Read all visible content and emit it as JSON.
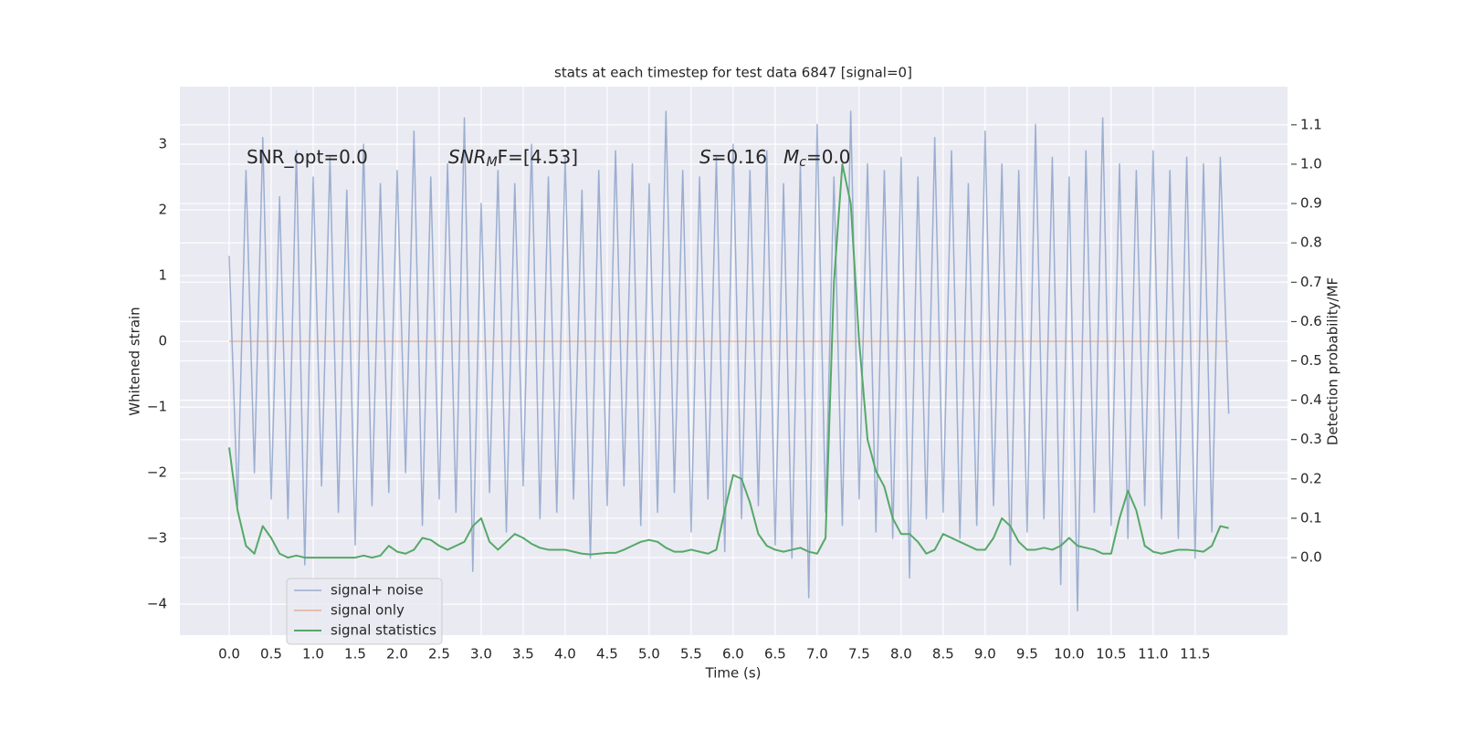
{
  "chart_data": {
    "type": "line",
    "title": "stats at each timestep for test data 6847 [signal=0]",
    "xlabel": "Time (s)",
    "ylabel": "Whitened strain",
    "y2label": "Detection probability/MF",
    "annotations": [
      [
        "SNR_opt=0.0"
      ],
      [
        "SNR",
        "M",
        "F=[4.53]"
      ],
      [
        "S",
        "=0.16"
      ],
      [
        "M",
        "c",
        "=0.0"
      ]
    ],
    "legend": "lower left",
    "grid": true,
    "xlim": [
      -0.587,
      12.6
    ],
    "ylim": [
      -4.47,
      3.875
    ],
    "y2lim": [
      -0.197,
      1.197
    ],
    "xticks": [
      {
        "value": 0,
        "label": "0.0"
      },
      0.5,
      {
        "value": 1,
        "label": "1.0"
      },
      1.5,
      {
        "value": 2,
        "label": "2.0"
      },
      2.5,
      {
        "value": 3,
        "label": "3.0"
      },
      3.5,
      {
        "value": 4,
        "label": "4.0"
      },
      4.5,
      {
        "value": 5,
        "label": "5.0"
      },
      5.5,
      {
        "value": 6,
        "label": "6.0"
      },
      6.5,
      {
        "value": 7,
        "label": "7.0"
      },
      7.5,
      {
        "value": 8,
        "label": "8.0"
      },
      8.5,
      {
        "value": 9,
        "label": "9.0"
      },
      9.5,
      {
        "value": 10,
        "label": "10.0"
      },
      10.5,
      {
        "value": 11,
        "label": "11.0"
      },
      11.5
    ],
    "yticks": [
      {
        "value": -4,
        "label": "−4"
      },
      {
        "value": -3,
        "label": "−3"
      },
      {
        "value": -2,
        "label": "−2"
      },
      {
        "value": -1,
        "label": "−1"
      },
      0,
      1,
      2,
      3
    ],
    "y2ticks": [
      {
        "value": 0,
        "label": "0.0"
      },
      0.1,
      0.2,
      0.3,
      0.4,
      0.5,
      0.6,
      0.7,
      0.8,
      0.9,
      {
        "value": 1,
        "label": "1.0"
      },
      1.1
    ],
    "x": [
      0,
      0.1,
      0.2,
      0.3,
      0.4,
      0.5,
      0.6,
      0.7,
      0.8,
      0.9,
      1,
      1.1,
      1.2,
      1.3,
      1.4,
      1.5,
      1.6,
      1.7,
      1.8,
      1.9,
      2,
      2.1,
      2.2,
      2.3,
      2.4,
      2.5,
      2.6,
      2.7,
      2.8,
      2.9,
      3,
      3.1,
      3.2,
      3.3,
      3.4,
      3.5,
      3.6,
      3.7,
      3.8,
      3.9,
      4,
      4.1,
      4.2,
      4.3,
      4.4,
      4.5,
      4.6,
      4.7,
      4.8,
      4.9,
      5,
      5.1,
      5.2,
      5.3,
      5.4,
      5.5,
      5.6,
      5.7,
      5.8,
      5.9,
      6,
      6.1,
      6.2,
      6.3,
      6.4,
      6.5,
      6.6,
      6.7,
      6.8,
      6.9,
      7,
      7.1,
      7.2,
      7.3,
      7.4,
      7.5,
      7.6,
      7.7,
      7.8,
      7.9,
      8,
      8.1,
      8.2,
      8.3,
      8.4,
      8.5,
      8.6,
      8.7,
      8.8,
      8.9,
      9,
      9.1,
      9.2,
      9.3,
      9.4,
      9.5,
      9.6,
      9.7,
      9.8,
      9.9,
      10,
      10.1,
      10.2,
      10.3,
      10.4,
      10.5,
      10.6,
      10.7,
      10.8,
      10.9,
      11,
      11.1,
      11.2,
      11.3,
      11.4,
      11.5,
      11.6,
      11.7,
      11.8,
      11.9
    ],
    "series": [
      {
        "name": "signal+ noise",
        "color": "#4c72b0",
        "values": [
          1.3,
          -2.5,
          2.6,
          -2.0,
          3.1,
          -2.4,
          2.2,
          -2.7,
          2.9,
          -3.4,
          2.5,
          -2.2,
          2.8,
          -2.6,
          2.3,
          -3.1,
          3.0,
          -2.5,
          2.4,
          -2.3,
          2.6,
          -2.0,
          3.2,
          -2.8,
          2.5,
          -2.4,
          2.7,
          -2.6,
          3.4,
          -3.5,
          2.1,
          -2.3,
          2.6,
          -2.9,
          2.4,
          -2.2,
          3.0,
          -2.7,
          2.5,
          -2.6,
          2.8,
          -2.4,
          2.3,
          -3.3,
          2.6,
          -2.5,
          2.9,
          -2.2,
          2.7,
          -2.8,
          2.4,
          -2.6,
          3.5,
          -2.3,
          2.6,
          -2.9,
          2.5,
          -2.4,
          2.8,
          -3.2,
          3.0,
          -2.7,
          2.6,
          -2.5,
          2.9,
          -3.1,
          2.4,
          -3.3,
          2.7,
          -3.9,
          3.3,
          -2.6,
          2.5,
          -2.8,
          3.5,
          -2.4,
          2.7,
          -2.9,
          2.6,
          -3.0,
          2.8,
          -3.6,
          2.5,
          -2.7,
          3.1,
          -2.6,
          2.9,
          -3.0,
          2.4,
          -2.8,
          3.2,
          -2.5,
          2.7,
          -3.4,
          2.6,
          -2.9,
          3.3,
          -2.7,
          2.8,
          -3.7,
          2.5,
          -4.1,
          2.9,
          -2.6,
          3.4,
          -2.8,
          2.7,
          -3.0,
          2.6,
          -2.5,
          2.9,
          -2.7,
          2.6,
          -3.0,
          2.8,
          -3.3,
          2.7,
          -2.9,
          2.8,
          -1.1
        ]
      },
      {
        "name": "signal only",
        "color": "#dd8452",
        "values": [
          0,
          0,
          0,
          0,
          0,
          0,
          0,
          0,
          0,
          0,
          0,
          0,
          0,
          0,
          0,
          0,
          0,
          0,
          0,
          0,
          0,
          0,
          0,
          0,
          0,
          0,
          0,
          0,
          0,
          0,
          0,
          0,
          0,
          0,
          0,
          0,
          0,
          0,
          0,
          0,
          0,
          0,
          0,
          0,
          0,
          0,
          0,
          0,
          0,
          0,
          0,
          0,
          0,
          0,
          0,
          0,
          0,
          0,
          0,
          0,
          0,
          0,
          0,
          0,
          0,
          0,
          0,
          0,
          0,
          0,
          0,
          0,
          0,
          0,
          0,
          0,
          0,
          0,
          0,
          0,
          0,
          0,
          0,
          0,
          0,
          0,
          0,
          0,
          0,
          0,
          0,
          0,
          0,
          0,
          0,
          0,
          0,
          0,
          0,
          0,
          0,
          0,
          0,
          0,
          0,
          0,
          0,
          0,
          0,
          0,
          0,
          0,
          0,
          0,
          0,
          0,
          0,
          0,
          0,
          0
        ]
      },
      {
        "name": "signal statistics",
        "color": "#55a868",
        "axis": "y2",
        "values": [
          0.28,
          0.12,
          0.03,
          0.01,
          0.08,
          0.05,
          0.01,
          0.0,
          0.005,
          0.0,
          0.0,
          0.0,
          0.0,
          0.0,
          0.0,
          0.0,
          0.005,
          0.0,
          0.005,
          0.03,
          0.015,
          0.01,
          0.02,
          0.05,
          0.045,
          0.03,
          0.02,
          0.03,
          0.04,
          0.08,
          0.1,
          0.04,
          0.02,
          0.04,
          0.06,
          0.05,
          0.035,
          0.025,
          0.02,
          0.02,
          0.02,
          0.015,
          0.01,
          0.008,
          0.01,
          0.012,
          0.012,
          0.02,
          0.03,
          0.04,
          0.045,
          0.04,
          0.025,
          0.015,
          0.015,
          0.02,
          0.015,
          0.01,
          0.02,
          0.12,
          0.21,
          0.2,
          0.14,
          0.06,
          0.03,
          0.02,
          0.015,
          0.02,
          0.025,
          0.015,
          0.01,
          0.05,
          0.7,
          1.0,
          0.9,
          0.55,
          0.3,
          0.22,
          0.18,
          0.1,
          0.06,
          0.06,
          0.04,
          0.01,
          0.02,
          0.06,
          0.05,
          0.04,
          0.03,
          0.02,
          0.02,
          0.05,
          0.1,
          0.08,
          0.04,
          0.02,
          0.02,
          0.025,
          0.02,
          0.03,
          0.05,
          0.03,
          0.025,
          0.02,
          0.01,
          0.01,
          0.1,
          0.17,
          0.12,
          0.03,
          0.015,
          0.01,
          0.015,
          0.02,
          0.02,
          0.018,
          0.015,
          0.03,
          0.08,
          0.075
        ]
      }
    ]
  }
}
